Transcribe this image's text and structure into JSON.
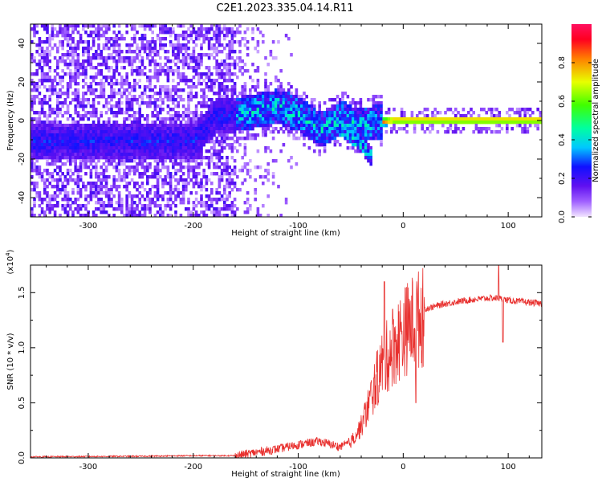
{
  "title": "C2E1.2023.335.04.14.R11",
  "chart_data": [
    {
      "type": "heatmap",
      "xlabel": "Height of straight line (km)",
      "ylabel": "Frequency (Hz)",
      "xlim": [
        -355,
        132
      ],
      "ylim": [
        -50,
        50
      ],
      "xticks": [
        -300,
        -200,
        -100,
        0,
        100
      ],
      "yticks": [
        -40,
        -20,
        0,
        20,
        40
      ],
      "colorbar": {
        "label": "Normalized spectral amplitude",
        "range": [
          0.0,
          1.0
        ],
        "ticks": [
          0.0,
          0.2,
          0.4,
          0.6,
          0.8
        ],
        "colormap": "rainbow (violet to red)"
      },
      "features": {
        "broadband_noise_x": [
          -355,
          -160
        ],
        "signal_band": [
          [
            -200,
            -10
          ],
          [
            -180,
            3
          ],
          [
            -160,
            4
          ],
          [
            -140,
            6
          ],
          [
            -120,
            8
          ],
          [
            -100,
            4
          ],
          [
            -80,
            -4
          ],
          [
            -60,
            2
          ],
          [
            -45,
            -2
          ],
          [
            -35,
            -1
          ],
          [
            -25,
            0
          ],
          [
            -10,
            1
          ],
          [
            0,
            1
          ],
          [
            40,
            1
          ],
          [
            80,
            1
          ],
          [
            100,
            1
          ],
          [
            132,
            1
          ]
        ],
        "descending_branch": [
          [
            -70,
            0
          ],
          [
            -55,
            -5
          ],
          [
            -40,
            -12
          ],
          [
            -30,
            -20
          ]
        ]
      }
    },
    {
      "type": "line",
      "xlabel": "Height of straight line (km)",
      "ylabel": "SNR (10 * v/v)",
      "multiplier_label": "(x10",
      "multiplier_exp": "4",
      "xlim": [
        -355,
        132
      ],
      "ylim": [
        0,
        1.75
      ],
      "xticks": [
        -300,
        -200,
        -100,
        0,
        100
      ],
      "yticks": [
        0.0,
        0.5,
        1.0,
        1.5
      ],
      "series": [
        {
          "color": "#e8302e",
          "envelope": [
            [
              -355,
              0.01
            ],
            [
              -250,
              0.015
            ],
            [
              -200,
              0.02
            ],
            [
              -160,
              0.02
            ],
            [
              -140,
              0.05
            ],
            [
              -120,
              0.08
            ],
            [
              -100,
              0.12
            ],
            [
              -80,
              0.15
            ],
            [
              -60,
              0.1
            ],
            [
              -50,
              0.15
            ],
            [
              -40,
              0.3
            ],
            [
              -30,
              0.6
            ],
            [
              -20,
              0.9
            ],
            [
              -10,
              1.05
            ],
            [
              0,
              1.2
            ],
            [
              10,
              1.3
            ],
            [
              20,
              1.35
            ],
            [
              40,
              1.4
            ],
            [
              60,
              1.43
            ],
            [
              80,
              1.45
            ],
            [
              90,
              1.45
            ],
            [
              100,
              1.43
            ],
            [
              132,
              1.4
            ]
          ],
          "spikes": [
            [
              -18,
              1.6
            ],
            [
              -10,
              1.35
            ],
            [
              12,
              0.5
            ],
            [
              91,
              1.75
            ],
            [
              95,
              1.05
            ]
          ]
        }
      ]
    }
  ]
}
